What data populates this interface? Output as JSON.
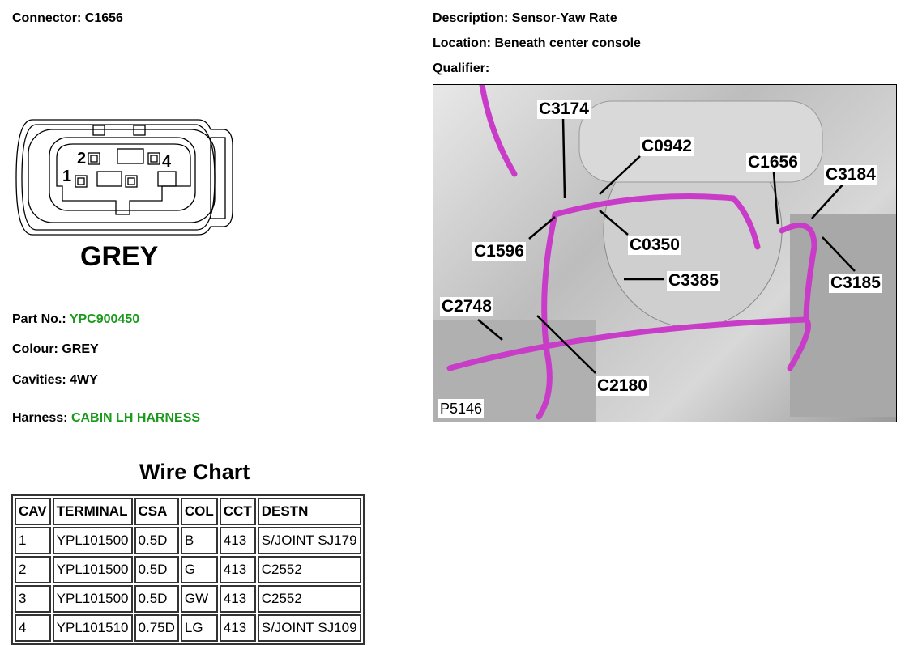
{
  "connector": {
    "label": "Connector:",
    "value": "C1656"
  },
  "description": {
    "label": "Description:",
    "value": "Sensor-Yaw Rate"
  },
  "location": {
    "label": "Location:",
    "value": "Beneath center console"
  },
  "qualifier": {
    "label": "Qualifier:",
    "value": ""
  },
  "diagram": {
    "colour_label": "GREY",
    "pins": [
      "1",
      "2",
      "4"
    ]
  },
  "part_no": {
    "label": "Part No.:",
    "value": "YPC900450"
  },
  "colour": {
    "label": "Colour:",
    "value": "GREY"
  },
  "cavities": {
    "label": "Cavities:",
    "value": "4WY"
  },
  "harness": {
    "label": "Harness:",
    "value": "CABIN LH HARNESS"
  },
  "photo": {
    "callouts": [
      "C3174",
      "C0942",
      "C1656",
      "C3184",
      "C1596",
      "C0350",
      "C3385",
      "C3185",
      "C2748",
      "C2180"
    ],
    "ref": "P5146",
    "wire_color": "#c83cc8"
  },
  "colors": {
    "accent_green": "#1a9a1a"
  },
  "wire_chart": {
    "title": "Wire Chart",
    "headers": [
      "CAV",
      "TERMINAL",
      "CSA",
      "COL",
      "CCT",
      "DESTN"
    ],
    "rows": [
      [
        "1",
        "YPL101500",
        "0.5D",
        "B",
        "413",
        "S/JOINT SJ179"
      ],
      [
        "2",
        "YPL101500",
        "0.5D",
        "G",
        "413",
        "C2552"
      ],
      [
        "3",
        "YPL101500",
        "0.5D",
        "GW",
        "413",
        "C2552"
      ],
      [
        "4",
        "YPL101510",
        "0.75D",
        "LG",
        "413",
        "S/JOINT SJ109"
      ]
    ]
  }
}
